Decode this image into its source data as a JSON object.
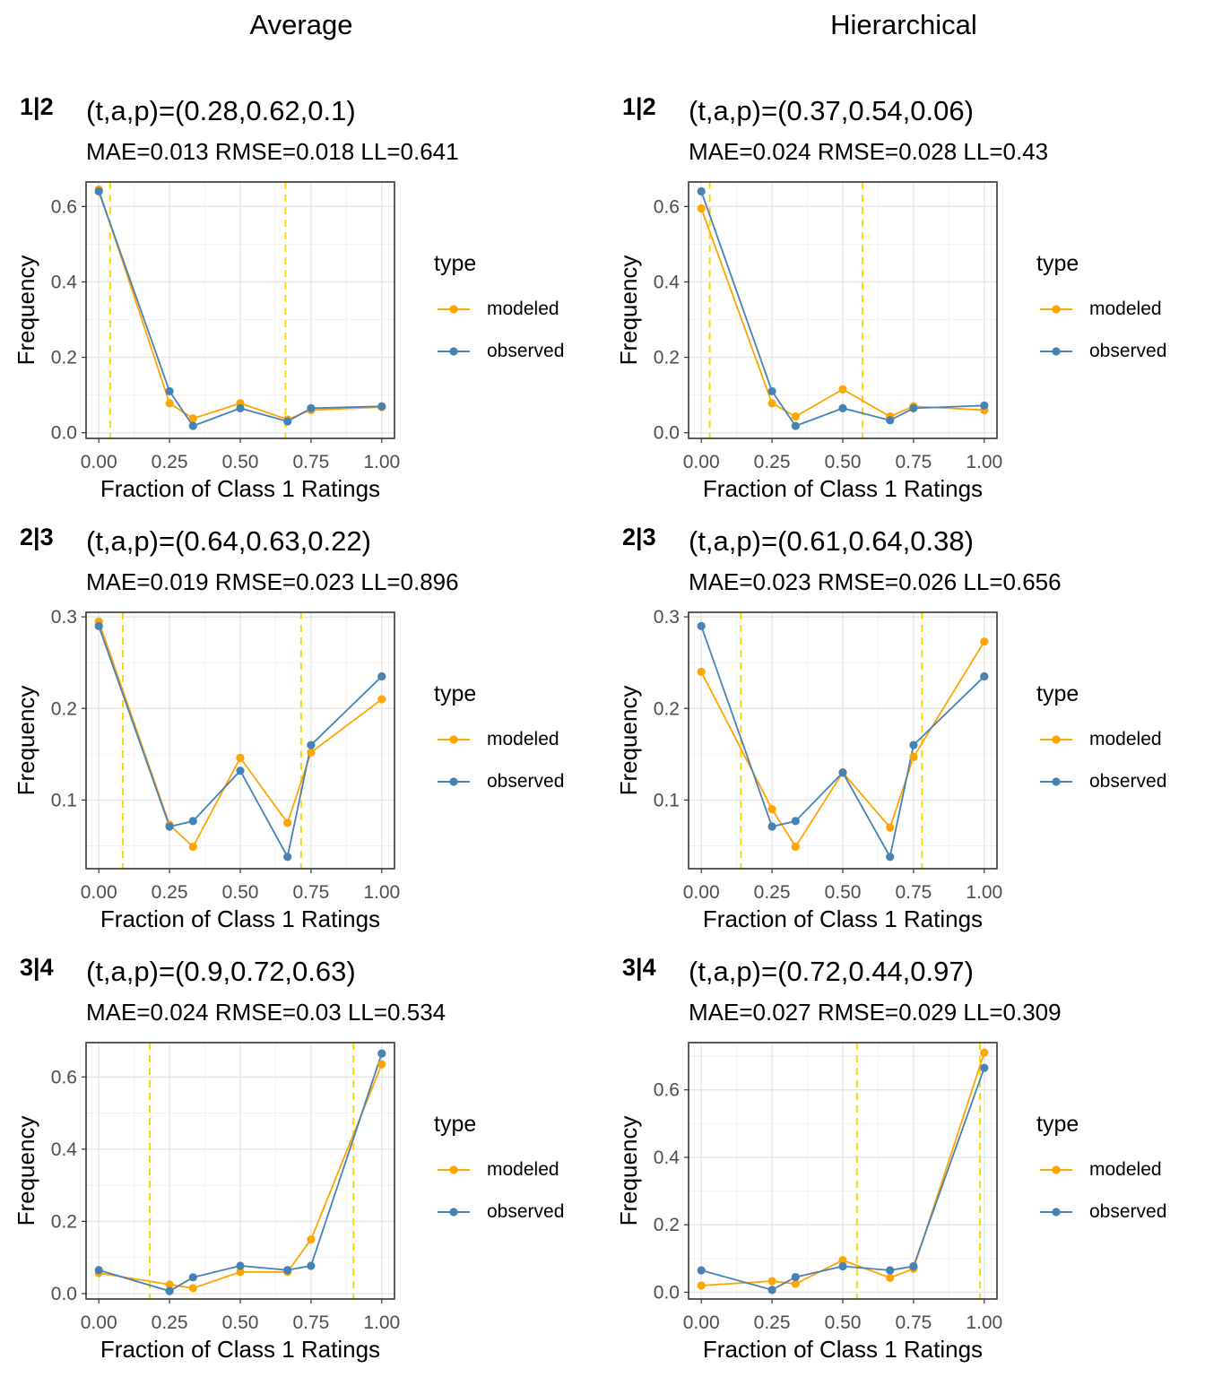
{
  "columns": [
    "Average",
    "Hierarchical"
  ],
  "legend": {
    "title": "type",
    "items": [
      {
        "label": "modeled",
        "color": "#FFA500"
      },
      {
        "label": "observed",
        "color": "#4682B4"
      }
    ]
  },
  "threshold_color": "#FFD700",
  "panels": [
    {
      "tag": "1|2",
      "subtitle": "(t,a,p)=(0.28,0.62,0.1)",
      "metrics": "MAE=0.013  RMSE=0.018  LL=0.641"
    },
    {
      "tag": "1|2",
      "subtitle": "(t,a,p)=(0.37,0.54,0.06)",
      "metrics": "MAE=0.024  RMSE=0.028  LL=0.43"
    },
    {
      "tag": "2|3",
      "subtitle": "(t,a,p)=(0.64,0.63,0.22)",
      "metrics": "MAE=0.019  RMSE=0.023  LL=0.896"
    },
    {
      "tag": "2|3",
      "subtitle": "(t,a,p)=(0.61,0.64,0.38)",
      "metrics": "MAE=0.023  RMSE=0.026  LL=0.656"
    },
    {
      "tag": "3|4",
      "subtitle": "(t,a,p)=(0.9,0.72,0.63)",
      "metrics": "MAE=0.024  RMSE=0.03  LL=0.534"
    },
    {
      "tag": "3|4",
      "subtitle": "(t,a,p)=(0.72,0.44,0.97)",
      "metrics": "MAE=0.027  RMSE=0.029  LL=0.309"
    }
  ],
  "chart_data": [
    {
      "type": "line",
      "xlabel": "Fraction of Class 1 Ratings",
      "ylabel": "Frequency",
      "xlim": [
        0,
        1
      ],
      "ylim": [
        -0.015,
        0.665
      ],
      "x_ticks": [
        "0.00",
        "0.25",
        "0.50",
        "0.75",
        "1.00"
      ],
      "y_ticks": [
        "0.0",
        "0.2",
        "0.4",
        "0.6"
      ],
      "thresholds": [
        0.04,
        0.66
      ],
      "x": [
        0,
        0.25,
        0.333,
        0.5,
        0.667,
        0.75,
        1
      ],
      "series": [
        {
          "name": "modeled",
          "values": [
            0.645,
            0.078,
            0.038,
            0.078,
            0.035,
            0.06,
            0.068
          ]
        },
        {
          "name": "observed",
          "values": [
            0.64,
            0.11,
            0.018,
            0.065,
            0.03,
            0.065,
            0.07
          ]
        }
      ]
    },
    {
      "type": "line",
      "xlabel": "Fraction of Class 1 Ratings",
      "ylabel": "Frequency",
      "xlim": [
        0,
        1
      ],
      "ylim": [
        -0.015,
        0.665
      ],
      "x_ticks": [
        "0.00",
        "0.25",
        "0.50",
        "0.75",
        "1.00"
      ],
      "y_ticks": [
        "0.0",
        "0.2",
        "0.4",
        "0.6"
      ],
      "thresholds": [
        0.03,
        0.57
      ],
      "x": [
        0,
        0.25,
        0.333,
        0.5,
        0.667,
        0.75,
        1
      ],
      "series": [
        {
          "name": "modeled",
          "values": [
            0.595,
            0.078,
            0.043,
            0.115,
            0.043,
            0.07,
            0.06
          ]
        },
        {
          "name": "observed",
          "values": [
            0.64,
            0.11,
            0.018,
            0.065,
            0.033,
            0.065,
            0.072
          ]
        }
      ]
    },
    {
      "type": "line",
      "xlabel": "Fraction of Class 1 Ratings",
      "ylabel": "Frequency",
      "xlim": [
        0,
        1
      ],
      "ylim": [
        0.025,
        0.305
      ],
      "x_ticks": [
        "0.00",
        "0.25",
        "0.50",
        "0.75",
        "1.00"
      ],
      "y_ticks": [
        "0.1",
        "0.2",
        "0.3"
      ],
      "thresholds": [
        0.085,
        0.715
      ],
      "x": [
        0,
        0.25,
        0.333,
        0.5,
        0.667,
        0.75,
        1
      ],
      "series": [
        {
          "name": "modeled",
          "values": [
            0.295,
            0.073,
            0.049,
            0.146,
            0.075,
            0.152,
            0.21
          ]
        },
        {
          "name": "observed",
          "values": [
            0.29,
            0.071,
            0.077,
            0.132,
            0.038,
            0.16,
            0.235
          ]
        }
      ]
    },
    {
      "type": "line",
      "xlabel": "Fraction of Class 1 Ratings",
      "ylabel": "Frequency",
      "xlim": [
        0,
        1
      ],
      "ylim": [
        0.025,
        0.305
      ],
      "x_ticks": [
        "0.00",
        "0.25",
        "0.50",
        "0.75",
        "1.00"
      ],
      "y_ticks": [
        "0.1",
        "0.2",
        "0.3"
      ],
      "thresholds": [
        0.14,
        0.78
      ],
      "x": [
        0,
        0.25,
        0.333,
        0.5,
        0.667,
        0.75,
        1
      ],
      "series": [
        {
          "name": "modeled",
          "values": [
            0.24,
            0.09,
            0.049,
            0.13,
            0.07,
            0.147,
            0.273
          ]
        },
        {
          "name": "observed",
          "values": [
            0.29,
            0.071,
            0.077,
            0.13,
            0.038,
            0.16,
            0.235
          ]
        }
      ]
    },
    {
      "type": "line",
      "xlabel": "Fraction of Class 1 Ratings",
      "ylabel": "Frequency",
      "xlim": [
        0,
        1
      ],
      "ylim": [
        -0.015,
        0.695
      ],
      "x_ticks": [
        "0.00",
        "0.25",
        "0.50",
        "0.75",
        "1.00"
      ],
      "y_ticks": [
        "0.0",
        "0.2",
        "0.4",
        "0.6"
      ],
      "thresholds": [
        0.18,
        0.9
      ],
      "x": [
        0,
        0.25,
        0.333,
        0.5,
        0.667,
        0.75,
        1
      ],
      "series": [
        {
          "name": "modeled",
          "values": [
            0.057,
            0.025,
            0.015,
            0.06,
            0.06,
            0.15,
            0.635
          ]
        },
        {
          "name": "observed",
          "values": [
            0.065,
            0.007,
            0.045,
            0.077,
            0.065,
            0.077,
            0.665
          ]
        }
      ]
    },
    {
      "type": "line",
      "xlabel": "Fraction of Class 1 Ratings",
      "ylabel": "Frequency",
      "xlim": [
        0,
        1
      ],
      "ylim": [
        -0.02,
        0.74
      ],
      "x_ticks": [
        "0.00",
        "0.25",
        "0.50",
        "0.75",
        "1.00"
      ],
      "y_ticks": [
        "0.0",
        "0.2",
        "0.4",
        "0.6"
      ],
      "thresholds": [
        0.55,
        0.985
      ],
      "x": [
        0,
        0.25,
        0.333,
        0.5,
        0.667,
        0.75,
        1
      ],
      "series": [
        {
          "name": "modeled",
          "values": [
            0.02,
            0.033,
            0.025,
            0.095,
            0.043,
            0.07,
            0.71
          ]
        },
        {
          "name": "observed",
          "values": [
            0.065,
            0.007,
            0.045,
            0.077,
            0.065,
            0.077,
            0.665
          ]
        }
      ]
    }
  ]
}
